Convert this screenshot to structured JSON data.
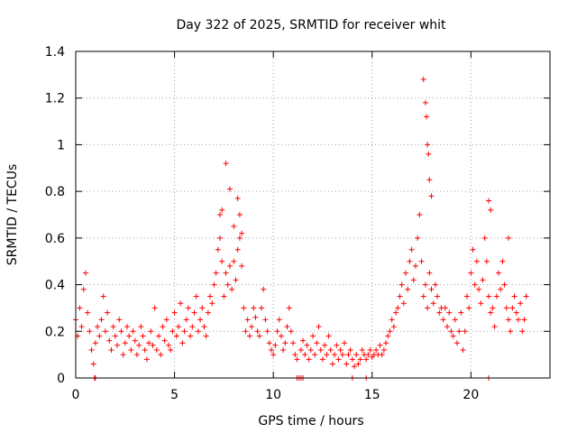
{
  "chart_data": {
    "type": "scatter",
    "title": "Day 322 of 2025, SRMTID for receiver whit",
    "xlabel": "GPS time / hours",
    "ylabel": "SRMTID / TECUs",
    "xlim": [
      0,
      24
    ],
    "ylim": [
      0,
      1.4
    ],
    "xticks": [
      0,
      5,
      10,
      15,
      20
    ],
    "xtick_labels": [
      "0",
      "5",
      "10",
      "15",
      "20"
    ],
    "yticks": [
      0,
      0.2,
      0.4,
      0.6,
      0.8,
      1.0,
      1.2,
      1.4
    ],
    "ytick_labels": [
      "0",
      "0.2",
      "0.4",
      "0.6",
      "0.8",
      "1",
      "1.2",
      "1.4"
    ],
    "grid": true,
    "marker": "+",
    "color": "#ff0000",
    "series": [
      {
        "name": "SRMTID",
        "x": [
          0.0,
          0.1,
          0.2,
          0.3,
          0.4,
          0.5,
          0.6,
          0.7,
          0.8,
          0.9,
          1.0,
          1.1,
          1.2,
          1.3,
          1.4,
          1.5,
          1.6,
          1.7,
          1.8,
          1.9,
          2.0,
          2.1,
          2.2,
          2.3,
          2.4,
          2.5,
          2.6,
          2.7,
          2.8,
          2.9,
          3.0,
          3.1,
          3.2,
          3.3,
          3.4,
          3.5,
          3.6,
          3.7,
          3.8,
          3.9,
          4.0,
          4.1,
          4.2,
          4.3,
          4.4,
          4.5,
          4.6,
          4.7,
          4.8,
          4.9,
          5.0,
          5.1,
          5.2,
          5.3,
          5.4,
          5.5,
          5.6,
          5.7,
          5.8,
          5.9,
          6.0,
          6.1,
          6.2,
          6.3,
          6.4,
          6.5,
          6.6,
          6.7,
          6.8,
          6.9,
          7.0,
          7.1,
          7.2,
          7.3,
          7.4,
          7.5,
          7.6,
          7.7,
          7.8,
          7.9,
          8.0,
          8.1,
          8.2,
          8.3,
          8.4,
          8.5,
          8.6,
          8.7,
          8.8,
          8.9,
          9.0,
          9.1,
          9.2,
          9.3,
          9.4,
          9.5,
          9.6,
          9.7,
          9.8,
          9.9,
          10.0,
          10.1,
          10.2,
          10.3,
          10.4,
          10.5,
          10.6,
          10.7,
          10.8,
          10.9,
          11.0,
          11.1,
          11.2,
          11.4,
          11.5,
          11.6,
          11.7,
          11.8,
          11.9,
          12.0,
          12.1,
          12.2,
          12.3,
          12.4,
          12.5,
          12.6,
          12.7,
          12.8,
          12.9,
          13.0,
          13.1,
          13.2,
          13.3,
          13.4,
          13.5,
          13.6,
          13.7,
          13.8,
          13.9,
          14.0,
          14.1,
          14.2,
          14.3,
          14.4,
          14.5,
          14.6,
          14.7,
          14.8,
          14.9,
          15.0,
          15.1,
          15.2,
          15.3,
          15.4,
          15.5,
          15.6,
          15.7,
          15.8,
          15.9,
          16.0,
          16.1,
          16.2,
          16.3,
          16.4,
          16.5,
          16.6,
          16.7,
          16.8,
          16.9,
          17.0,
          17.1,
          17.2,
          17.3,
          17.4,
          17.5,
          17.6,
          17.7,
          17.8,
          17.9,
          18.0,
          18.1,
          18.2,
          18.3,
          18.4,
          18.5,
          18.6,
          18.7,
          18.8,
          18.9,
          19.0,
          19.1,
          19.2,
          19.3,
          19.4,
          19.5,
          19.6,
          19.7,
          19.8,
          19.9,
          20.0,
          20.1,
          20.2,
          20.3,
          20.4,
          20.5,
          20.6,
          20.7,
          20.8,
          20.9,
          21.0,
          21.1,
          21.2,
          21.3,
          21.4,
          21.5,
          21.6,
          21.7,
          21.8,
          21.9,
          22.0,
          22.1,
          22.2,
          22.3,
          22.4,
          22.5,
          22.6,
          22.7,
          22.8,
          7.3,
          7.4,
          7.6,
          7.8,
          8.0,
          8.2,
          8.3,
          8.4,
          17.6,
          17.7,
          17.75,
          17.8,
          17.85,
          17.9,
          18.0,
          20.9,
          21.0,
          21.9,
          0.95,
          1.0,
          11.2,
          11.3,
          11.4,
          11.5,
          14.0,
          14.7,
          20.9
        ],
        "y": [
          0.25,
          0.18,
          0.3,
          0.22,
          0.38,
          0.45,
          0.28,
          0.2,
          0.12,
          0.06,
          0.15,
          0.22,
          0.18,
          0.25,
          0.35,
          0.2,
          0.28,
          0.16,
          0.12,
          0.22,
          0.18,
          0.14,
          0.25,
          0.2,
          0.1,
          0.15,
          0.22,
          0.18,
          0.12,
          0.2,
          0.16,
          0.1,
          0.14,
          0.22,
          0.18,
          0.12,
          0.08,
          0.15,
          0.2,
          0.14,
          0.3,
          0.12,
          0.18,
          0.1,
          0.22,
          0.16,
          0.25,
          0.14,
          0.12,
          0.2,
          0.28,
          0.18,
          0.22,
          0.32,
          0.15,
          0.2,
          0.25,
          0.3,
          0.18,
          0.22,
          0.28,
          0.35,
          0.2,
          0.25,
          0.3,
          0.22,
          0.18,
          0.28,
          0.35,
          0.32,
          0.4,
          0.45,
          0.55,
          0.7,
          0.5,
          0.35,
          0.45,
          0.4,
          0.48,
          0.38,
          0.5,
          0.42,
          0.55,
          0.6,
          0.48,
          0.3,
          0.2,
          0.25,
          0.18,
          0.22,
          0.3,
          0.26,
          0.2,
          0.18,
          0.3,
          0.38,
          0.25,
          0.2,
          0.15,
          0.12,
          0.1,
          0.14,
          0.2,
          0.25,
          0.18,
          0.12,
          0.15,
          0.22,
          0.3,
          0.2,
          0.15,
          0.1,
          0.08,
          0.12,
          0.16,
          0.1,
          0.14,
          0.08,
          0.12,
          0.18,
          0.1,
          0.15,
          0.22,
          0.12,
          0.08,
          0.14,
          0.1,
          0.18,
          0.12,
          0.06,
          0.1,
          0.14,
          0.08,
          0.12,
          0.1,
          0.15,
          0.06,
          0.1,
          0.12,
          0.08,
          0.05,
          0.1,
          0.06,
          0.08,
          0.12,
          0.1,
          0.08,
          0.1,
          0.12,
          0.09,
          0.1,
          0.12,
          0.1,
          0.14,
          0.1,
          0.12,
          0.15,
          0.18,
          0.2,
          0.25,
          0.22,
          0.28,
          0.3,
          0.35,
          0.4,
          0.32,
          0.45,
          0.38,
          0.5,
          0.55,
          0.42,
          0.48,
          0.6,
          0.7,
          0.5,
          0.35,
          0.4,
          0.3,
          0.45,
          0.38,
          0.32,
          0.4,
          0.35,
          0.28,
          0.3,
          0.25,
          0.3,
          0.22,
          0.28,
          0.2,
          0.18,
          0.25,
          0.15,
          0.2,
          0.28,
          0.12,
          0.2,
          0.35,
          0.3,
          0.45,
          0.55,
          0.4,
          0.5,
          0.38,
          0.32,
          0.42,
          0.6,
          0.5,
          0.35,
          0.28,
          0.3,
          0.22,
          0.35,
          0.45,
          0.38,
          0.5,
          0.4,
          0.3,
          0.25,
          0.2,
          0.3,
          0.35,
          0.28,
          0.25,
          0.32,
          0.2,
          0.25,
          0.35,
          0.6,
          0.72,
          0.92,
          0.81,
          0.65,
          0.77,
          0.7,
          0.62,
          1.28,
          1.18,
          1.12,
          1.0,
          0.96,
          0.85,
          0.78,
          0.76,
          0.72,
          0.6,
          0.0,
          0.0,
          0.0,
          0.0,
          0.0,
          0.0,
          0.0,
          0.0,
          0.0
        ]
      }
    ]
  }
}
